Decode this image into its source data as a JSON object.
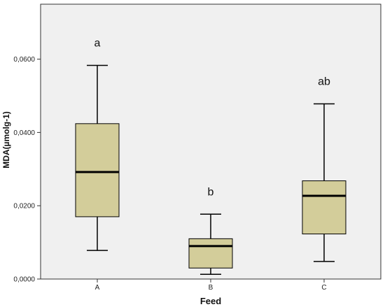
{
  "chart_data": {
    "type": "box",
    "title": "",
    "xlabel": "Feed",
    "ylabel": "MDA(µmolg-1)",
    "categories": [
      "A",
      "B",
      "C"
    ],
    "ylim": [
      0,
      0.075
    ],
    "yticks": [
      {
        "value": 0.0,
        "label": "0,0000"
      },
      {
        "value": 0.02,
        "label": "0,0200"
      },
      {
        "value": 0.04,
        "label": "0,0400"
      },
      {
        "value": 0.06,
        "label": "0,0600"
      }
    ],
    "boxes": [
      {
        "category": "A",
        "min": 0.0078,
        "q1": 0.017,
        "median": 0.0292,
        "q3": 0.0424,
        "max": 0.0583,
        "letter": "a"
      },
      {
        "category": "B",
        "min": 0.0013,
        "q1": 0.003,
        "median": 0.009,
        "q3": 0.011,
        "max": 0.0177,
        "letter": "b"
      },
      {
        "category": "C",
        "min": 0.0048,
        "q1": 0.0123,
        "median": 0.0227,
        "q3": 0.0268,
        "max": 0.0478,
        "letter": "ab"
      }
    ],
    "grid": false,
    "box_fill": "#d3cd9a",
    "plot_background": "#f0f0f0"
  }
}
